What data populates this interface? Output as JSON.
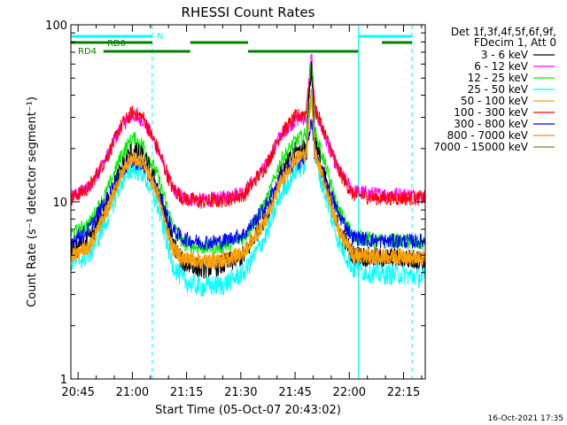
{
  "chart_data": {
    "type": "line",
    "title": "RHESSI Count Rates",
    "xlabel": "Start Time (05-Oct-07 20:43:02)",
    "ylabel": "Count Rate (s⁻¹ detector segment⁻¹)",
    "yscale": "log",
    "ylim": [
      1,
      100
    ],
    "xlim_minutes": [
      0,
      98
    ],
    "x_ticks": [
      {
        "minute": 2,
        "label": "20:45"
      },
      {
        "minute": 17,
        "label": "21:00"
      },
      {
        "minute": 32,
        "label": "21:15"
      },
      {
        "minute": 47,
        "label": "21:30"
      },
      {
        "minute": 62,
        "label": "21:45"
      },
      {
        "minute": 77,
        "label": "22:00"
      },
      {
        "minute": 92,
        "label": "22:15"
      }
    ],
    "y_ticks": [
      {
        "value": 1,
        "label": "1"
      },
      {
        "value": 10,
        "label": "10"
      },
      {
        "value": 100,
        "label": "100"
      }
    ],
    "legend_header": [
      "Det 1f,3f,4f,5f,6f,9f,",
      "FDecim 1, Att 0"
    ],
    "legend_placement": "right",
    "series": [
      {
        "name": "3 - 6 keV",
        "color": "#000000",
        "key": "s36"
      },
      {
        "name": "6 - 12 keV",
        "color": "#ff00ff",
        "key": "s612"
      },
      {
        "name": "12 - 25 keV",
        "color": "#00ee00",
        "key": "s1225"
      },
      {
        "name": "25 - 50 keV",
        "color": "#00ffff",
        "key": "s2550"
      },
      {
        "name": "50 - 100 keV",
        "color": "#ffa500",
        "key": "s50100"
      },
      {
        "name": "100 - 300 keV",
        "color": "#ff0000",
        "key": "s100300"
      },
      {
        "name": "300 - 800 keV",
        "color": "#0000ff",
        "key": "s300800"
      },
      {
        "name": "800 - 7000 keV",
        "color": "#ff8c00",
        "key": "s8007000"
      },
      {
        "name": "7000 - 15000 keV",
        "color": "#6b8e23",
        "key": "s700015000"
      }
    ],
    "series_points": {
      "s36": [
        [
          0,
          5.2
        ],
        [
          5,
          6.0
        ],
        [
          10,
          9.5
        ],
        [
          14,
          15.5
        ],
        [
          17,
          19.5
        ],
        [
          20,
          18.0
        ],
        [
          24,
          12.0
        ],
        [
          28,
          6.0
        ],
        [
          31,
          4.5
        ],
        [
          36,
          4.2
        ],
        [
          42,
          4.4
        ],
        [
          48,
          5.0
        ],
        [
          54,
          8.5
        ],
        [
          58,
          14.0
        ],
        [
          62,
          19.0
        ],
        [
          65,
          20.0
        ],
        [
          66.5,
          60.0
        ],
        [
          67.5,
          22.0
        ],
        [
          70,
          14.0
        ],
        [
          74,
          7.0
        ],
        [
          78,
          5.0
        ],
        [
          85,
          4.8
        ],
        [
          92,
          4.8
        ],
        [
          98,
          4.6
        ]
      ],
      "s612": [
        [
          0,
          10.5
        ],
        [
          5,
          12.0
        ],
        [
          10,
          18.0
        ],
        [
          14,
          27.0
        ],
        [
          17,
          31.0
        ],
        [
          20,
          29.0
        ],
        [
          24,
          20.0
        ],
        [
          28,
          12.0
        ],
        [
          31,
          10.5
        ],
        [
          36,
          10.2
        ],
        [
          42,
          10.5
        ],
        [
          48,
          11.5
        ],
        [
          54,
          16.0
        ],
        [
          58,
          24.0
        ],
        [
          62,
          29.0
        ],
        [
          65,
          30.0
        ],
        [
          66.5,
          70.0
        ],
        [
          67.5,
          33.0
        ],
        [
          70,
          24.0
        ],
        [
          74,
          15.0
        ],
        [
          78,
          11.5
        ],
        [
          85,
          11.0
        ],
        [
          92,
          11.0
        ],
        [
          98,
          10.8
        ]
      ],
      "s1225": [
        [
          0,
          6.5
        ],
        [
          5,
          7.5
        ],
        [
          10,
          11.5
        ],
        [
          14,
          18.5
        ],
        [
          17,
          23.0
        ],
        [
          20,
          21.0
        ],
        [
          24,
          14.0
        ],
        [
          28,
          7.5
        ],
        [
          31,
          5.8
        ],
        [
          36,
          5.5
        ],
        [
          42,
          5.6
        ],
        [
          48,
          6.3
        ],
        [
          54,
          10.0
        ],
        [
          58,
          17.0
        ],
        [
          62,
          22.0
        ],
        [
          65,
          24.0
        ],
        [
          66.5,
          65.0
        ],
        [
          67.5,
          25.0
        ],
        [
          70,
          17.0
        ],
        [
          74,
          9.0
        ],
        [
          78,
          6.5
        ],
        [
          85,
          6.0
        ],
        [
          92,
          6.0
        ],
        [
          98,
          5.8
        ]
      ],
      "s2550": [
        [
          0,
          4.5
        ],
        [
          5,
          5.0
        ],
        [
          10,
          8.0
        ],
        [
          14,
          13.0
        ],
        [
          17,
          15.5
        ],
        [
          20,
          14.5
        ],
        [
          24,
          9.5
        ],
        [
          28,
          4.5
        ],
        [
          31,
          3.6
        ],
        [
          36,
          3.3
        ],
        [
          42,
          3.4
        ],
        [
          48,
          4.0
        ],
        [
          54,
          6.5
        ],
        [
          58,
          11.0
        ],
        [
          62,
          15.0
        ],
        [
          65,
          16.5
        ],
        [
          66.5,
          45.0
        ],
        [
          67.5,
          18.0
        ],
        [
          70,
          11.5
        ],
        [
          74,
          6.0
        ],
        [
          78,
          4.2
        ],
        [
          85,
          3.9
        ],
        [
          92,
          3.9
        ],
        [
          98,
          3.7
        ]
      ],
      "s50100": [
        [
          0,
          5.0
        ],
        [
          5,
          5.5
        ],
        [
          10,
          9.0
        ],
        [
          14,
          14.5
        ],
        [
          17,
          18.0
        ],
        [
          20,
          17.0
        ],
        [
          24,
          11.0
        ],
        [
          28,
          5.5
        ],
        [
          31,
          4.8
        ],
        [
          36,
          4.6
        ],
        [
          42,
          4.7
        ],
        [
          48,
          5.2
        ],
        [
          54,
          8.0
        ],
        [
          58,
          13.0
        ],
        [
          62,
          17.5
        ],
        [
          65,
          18.5
        ],
        [
          66.5,
          40.0
        ],
        [
          67.5,
          19.0
        ],
        [
          70,
          13.0
        ],
        [
          74,
          7.0
        ],
        [
          78,
          5.0
        ],
        [
          85,
          4.9
        ],
        [
          92,
          4.9
        ],
        [
          98,
          4.8
        ]
      ],
      "s100300": [
        [
          0,
          10.5
        ],
        [
          5,
          12.0
        ],
        [
          10,
          18.0
        ],
        [
          14,
          27.0
        ],
        [
          17,
          32.0
        ],
        [
          20,
          30.0
        ],
        [
          24,
          20.0
        ],
        [
          28,
          12.0
        ],
        [
          31,
          10.5
        ],
        [
          36,
          10.0
        ],
        [
          42,
          10.2
        ],
        [
          48,
          11.0
        ],
        [
          54,
          16.0
        ],
        [
          58,
          24.0
        ],
        [
          62,
          30.0
        ],
        [
          65,
          32.0
        ],
        [
          66.5,
          55.0
        ],
        [
          67.5,
          34.0
        ],
        [
          70,
          25.0
        ],
        [
          74,
          15.0
        ],
        [
          78,
          11.0
        ],
        [
          85,
          10.5
        ],
        [
          92,
          10.5
        ],
        [
          98,
          10.5
        ]
      ],
      "s300800": [
        [
          0,
          6.0
        ],
        [
          5,
          7.0
        ],
        [
          10,
          10.5
        ],
        [
          14,
          15.0
        ],
        [
          17,
          17.0
        ],
        [
          20,
          16.0
        ],
        [
          24,
          11.5
        ],
        [
          28,
          7.0
        ],
        [
          31,
          6.2
        ],
        [
          36,
          5.9
        ],
        [
          42,
          6.0
        ],
        [
          48,
          6.6
        ],
        [
          54,
          9.5
        ],
        [
          58,
          14.0
        ],
        [
          62,
          16.5
        ],
        [
          65,
          17.5
        ],
        [
          66.5,
          30.0
        ],
        [
          67.5,
          18.0
        ],
        [
          70,
          14.0
        ],
        [
          74,
          8.5
        ],
        [
          78,
          6.3
        ],
        [
          85,
          6.0
        ],
        [
          92,
          6.0
        ],
        [
          98,
          6.0
        ]
      ],
      "s8007000": [
        [
          0,
          5.0
        ],
        [
          5,
          5.5
        ],
        [
          10,
          9.0
        ],
        [
          14,
          14.5
        ],
        [
          17,
          18.0
        ],
        [
          20,
          17.0
        ],
        [
          24,
          11.0
        ],
        [
          28,
          5.5
        ],
        [
          31,
          4.8
        ],
        [
          36,
          4.6
        ],
        [
          42,
          4.7
        ],
        [
          48,
          5.2
        ],
        [
          54,
          8.0
        ],
        [
          58,
          13.0
        ],
        [
          62,
          17.5
        ],
        [
          65,
          18.5
        ],
        [
          66.5,
          40.0
        ],
        [
          67.5,
          19.0
        ],
        [
          70,
          13.0
        ],
        [
          74,
          7.0
        ],
        [
          78,
          5.0
        ],
        [
          85,
          4.9
        ],
        [
          92,
          4.9
        ],
        [
          98,
          4.8
        ]
      ],
      "s700015000": [
        [
          0,
          5.0
        ],
        [
          5,
          5.5
        ],
        [
          10,
          9.0
        ],
        [
          14,
          14.5
        ],
        [
          17,
          18.0
        ],
        [
          20,
          17.0
        ],
        [
          24,
          11.0
        ],
        [
          28,
          5.5
        ],
        [
          31,
          4.8
        ],
        [
          36,
          4.6
        ],
        [
          42,
          4.7
        ],
        [
          48,
          5.2
        ],
        [
          54,
          8.0
        ],
        [
          58,
          13.0
        ],
        [
          62,
          17.5
        ],
        [
          65,
          18.5
        ],
        [
          66.5,
          40.0
        ],
        [
          67.5,
          19.0
        ],
        [
          70,
          13.0
        ],
        [
          74,
          7.0
        ],
        [
          78,
          5.0
        ],
        [
          85,
          4.9
        ],
        [
          92,
          4.9
        ],
        [
          98,
          4.8
        ]
      ]
    },
    "draw_order": [
      "s612",
      "s100300",
      "s1225",
      "s36",
      "s2550",
      "s300800",
      "s8007000",
      "s700015000",
      "s50100"
    ],
    "annotations": {
      "night_label": "N",
      "rd0_label": "RD0",
      "rd4_label": "RD4",
      "night_color": "#00ffff",
      "rd_color": "#008000",
      "solid_vlines_minutes": [
        0,
        79.5
      ],
      "dashed_vlines_minutes": [
        22.5,
        98
      ],
      "night_bars": [
        [
          0,
          22.5
        ],
        [
          79.5,
          98
        ]
      ],
      "rd0_bars": [
        [
          0,
          22.5
        ],
        [
          33,
          49
        ],
        [
          86,
          98
        ]
      ],
      "rd4_bars": [
        [
          9,
          33
        ],
        [
          49,
          79.5
        ]
      ]
    },
    "timestamp": "16-Oct-2021 17:35"
  }
}
